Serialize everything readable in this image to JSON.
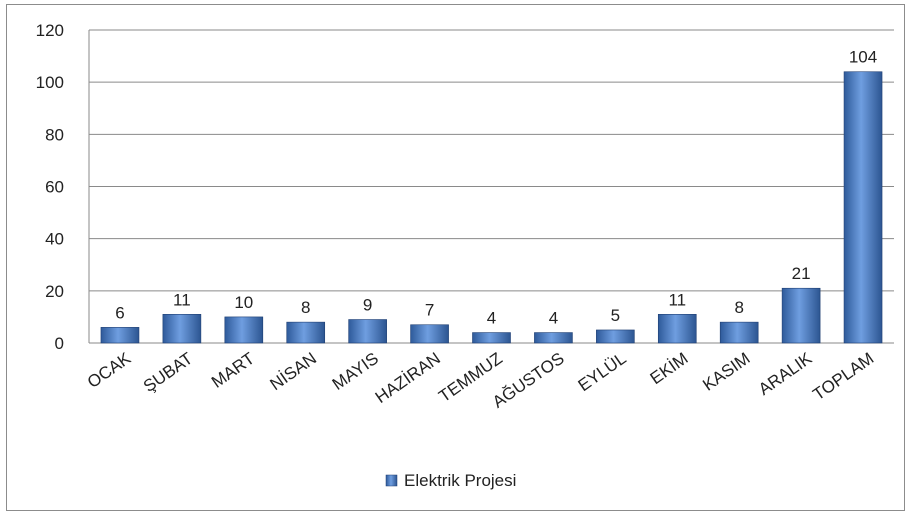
{
  "chart_data": {
    "type": "bar",
    "categories": [
      "OCAK",
      "ŞUBAT",
      "MART",
      "NİSAN",
      "MAYIS",
      "HAZİRAN",
      "TEMMUZ",
      "AĞUSTOS",
      "EYLÜL",
      "EKİM",
      "KASIM",
      "ARALIK",
      "TOPLAM"
    ],
    "series": [
      {
        "name": "Elektrik Projesi",
        "values": [
          6,
          11,
          10,
          8,
          9,
          7,
          4,
          4,
          5,
          11,
          8,
          21,
          104
        ]
      }
    ],
    "title": "",
    "xlabel": "",
    "ylabel": "",
    "ylim": [
      0,
      120
    ],
    "yticks": [
      0,
      20,
      40,
      60,
      80,
      100,
      120
    ],
    "grid": true,
    "data_labels": true,
    "legend_position": "bottom",
    "bar_color": "#3f6fb5"
  }
}
